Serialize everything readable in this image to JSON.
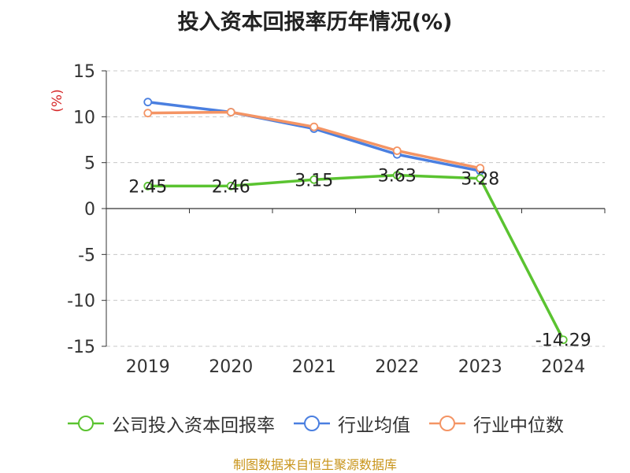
{
  "chart_data": {
    "type": "line",
    "title": "投入资本回报率历年情况(%)",
    "ylabel": "(%)",
    "xlabel": "",
    "categories": [
      "2019",
      "2020",
      "2021",
      "2022",
      "2023",
      "2024"
    ],
    "ylim": [
      -15,
      15
    ],
    "yticks": [
      15,
      10,
      5,
      0,
      -5,
      -10,
      -15
    ],
    "grid": true,
    "legend_position": "bottom",
    "series": [
      {
        "name": "公司投入资本回报率",
        "color": "#5ac330",
        "values": [
          2.45,
          2.46,
          3.15,
          3.63,
          3.28,
          -14.29
        ],
        "labels": [
          "2.45",
          "2.46",
          "3.15",
          "3.63",
          "3.28",
          "-14.29"
        ]
      },
      {
        "name": "行业均值",
        "color": "#4a7fe0",
        "values": [
          11.6,
          10.5,
          8.7,
          5.9,
          4.1,
          null
        ]
      },
      {
        "name": "行业中位数",
        "color": "#f49464",
        "values": [
          10.4,
          10.5,
          8.9,
          6.3,
          4.4,
          null
        ]
      }
    ]
  },
  "source": "制图数据来自恒生聚源数据库"
}
